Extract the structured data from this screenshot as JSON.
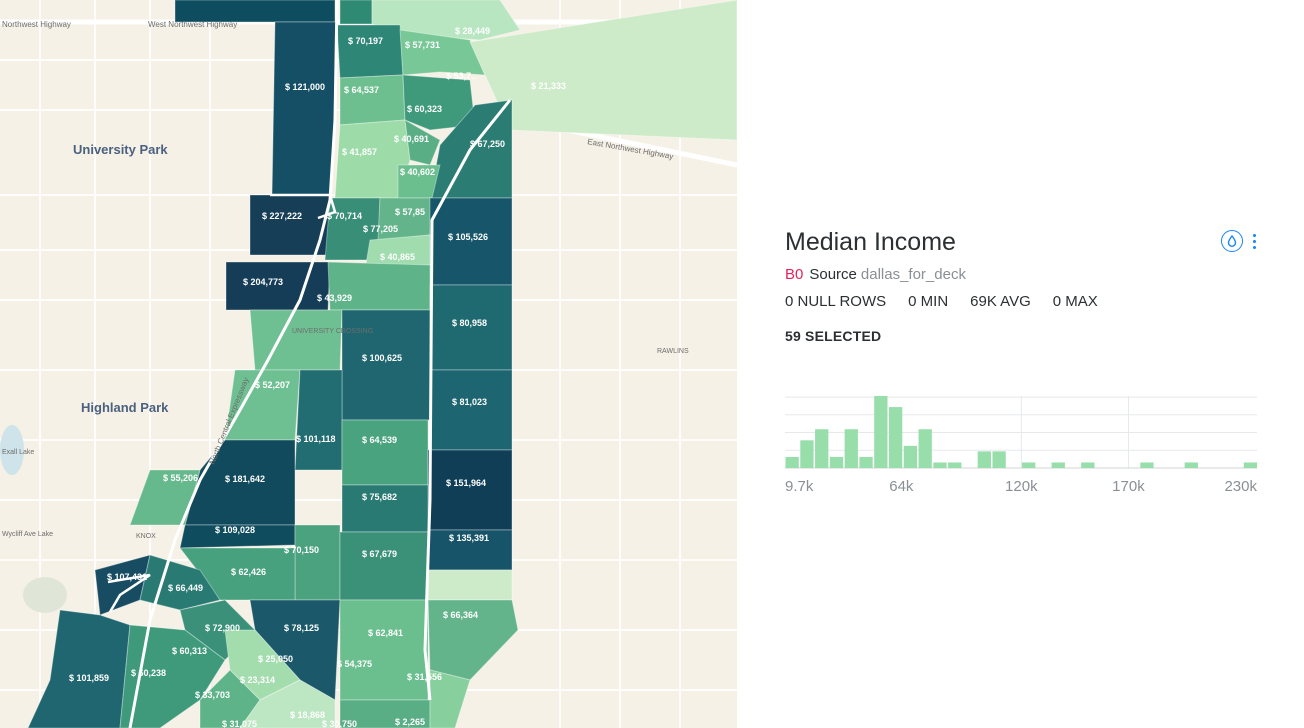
{
  "map": {
    "places": [
      "University Park",
      "Highland Park"
    ],
    "small_places": [
      "RAWLINS",
      "KNOX",
      "UNIVERSITY CROSSING",
      "Exall Lake",
      "Wycliff Ave Lake"
    ],
    "roads": [
      "Northwest Highway",
      "West Northwest Highway",
      "East Northwest Highway",
      "North Central Expressway"
    ],
    "tract_labels": [
      "$ 70,197",
      "$ 57,731",
      "$ 28,449",
      "$ 121,000",
      "$ 64,537",
      "$ 53,7..",
      "$ 21,333",
      "$ 60,323",
      "$ 40,691",
      "$ 67,250",
      "$ 41,857",
      "$ 40,602",
      "$ 227,222",
      "$ 70,714",
      "$ 57,85",
      "$ 77,205",
      "$ 105,526",
      "$ 40,865",
      "$ 204,773",
      "$ 43,929",
      "$ 80,958",
      "$ 100,625",
      "$ 52,207",
      "$ 81,023",
      "$ 101,118",
      "$ 64,539",
      "$ 55,206",
      "$ 181,642",
      "$ 151,964",
      "$ 75,682",
      "$ 109,028",
      "$ 135,391",
      "$ 70,150",
      "$ 67,679",
      "$ 62,426",
      "$ 107,431",
      "$ 66,449",
      "$ 66,364",
      "$ 72,900",
      "$ 78,125",
      "$ 62,841",
      "$ 60,313",
      "$ 25,050",
      "$ 54,375",
      "$ 101,859",
      "$ 60,238",
      "$ 23,314",
      "$ 31,556",
      "$ 33,703",
      "$ 18,868",
      "$ 31,075",
      "$ 30,750",
      "$ 2,265"
    ]
  },
  "widget": {
    "title": "Median Income",
    "layer_badge": "B0",
    "source_label": "Source",
    "source_name": "dallas_for_deck",
    "stats": {
      "null_rows": "0 NULL ROWS",
      "min": "0 MIN",
      "avg": "69K AVG",
      "max": "0 MAX"
    },
    "selected": "59 SELECTED",
    "icons": {
      "layer": "drop-icon",
      "menu": "more-vertical-icon"
    },
    "colors": {
      "bar": "#98deaa",
      "accent": "#1785fb",
      "badge": "#e0245e"
    }
  },
  "chart_data": {
    "type": "bar",
    "title": "",
    "xlabel": "",
    "ylabel": "",
    "x_tick_labels": [
      "9.7k",
      "64k",
      "120k",
      "170k",
      "230k"
    ],
    "x_tick_values": [
      9.7,
      64,
      120,
      170,
      230
    ],
    "bin_width": 6.9,
    "bin_starts": [
      9.7,
      16.6,
      23.5,
      30.4,
      37.3,
      44.2,
      51.1,
      58.0,
      64.9,
      71.8,
      78.7,
      85.6,
      99.4,
      106.3,
      120.1,
      133.9,
      147.7,
      175.3,
      196.0,
      223.6
    ],
    "values": [
      2,
      5,
      7,
      2,
      7,
      2,
      13,
      11,
      4,
      7,
      1,
      1,
      3,
      3,
      1,
      1,
      1,
      1,
      1,
      1
    ],
    "ylim": [
      0,
      13
    ]
  }
}
